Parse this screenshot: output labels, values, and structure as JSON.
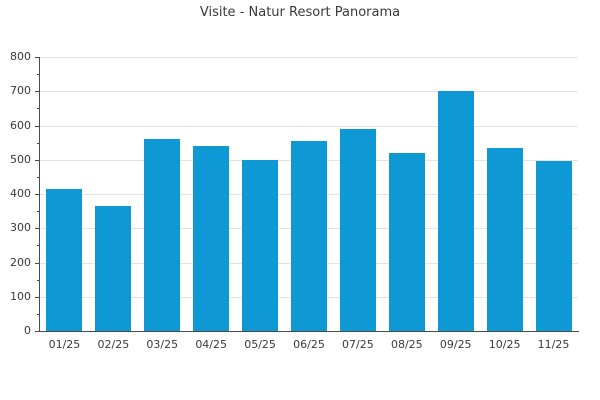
{
  "title": "Visite - Natur Resort Panorama",
  "colors": {
    "bar": "#0f99d4",
    "grid": "#e3e3e3",
    "axis": "#4a4a4a",
    "text": "#3a3a3a"
  },
  "chart_data": {
    "type": "bar",
    "title": "Visite - Natur Resort Panorama",
    "categories": [
      "01/25",
      "02/25",
      "03/25",
      "04/25",
      "05/25",
      "06/25",
      "07/25",
      "08/25",
      "09/25",
      "10/25",
      "11/25"
    ],
    "values": [
      415,
      365,
      560,
      540,
      500,
      555,
      590,
      520,
      700,
      535,
      495
    ],
    "xlabel": "",
    "ylabel": "",
    "ylim": [
      0,
      800
    ],
    "yticks": [
      0,
      100,
      200,
      300,
      400,
      500,
      600,
      700,
      800
    ],
    "minor_tick_step": 50,
    "grid": true,
    "legend": false
  }
}
